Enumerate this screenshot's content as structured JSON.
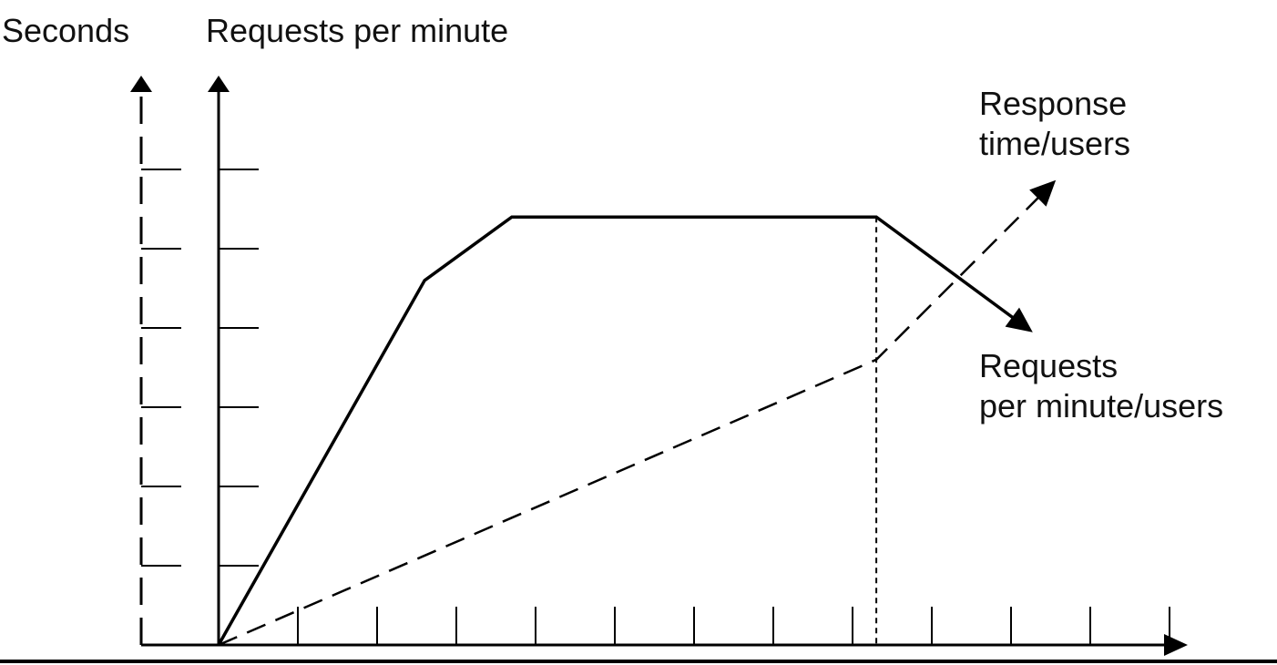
{
  "axes": {
    "seconds_label": "Seconds",
    "requests_label": "Requests per minute"
  },
  "series_labels": {
    "response_line1": "Response",
    "response_line2": "time/users",
    "requests_line1": "Requests",
    "requests_line2": "per minute/users"
  },
  "colors": {
    "ink": "#000000",
    "background": "#ffffff"
  },
  "chart_data": {
    "type": "line",
    "title": "",
    "xlabel": "",
    "ylabel_left": "Seconds",
    "ylabel_right": "Requests per minute",
    "x_ticks": 12,
    "y_ticks": 6,
    "xlim": [
      0,
      12
    ],
    "ylim": [
      0,
      6
    ],
    "series": [
      {
        "name": "Requests per minute/users",
        "style": "solid",
        "points": [
          [
            0,
            0
          ],
          [
            2.6,
            4.6
          ],
          [
            3.7,
            5.4
          ],
          [
            8.3,
            5.4
          ],
          [
            10.2,
            4.0
          ]
        ],
        "arrow_end": true
      },
      {
        "name": "Response time/users",
        "style": "dashed",
        "points": [
          [
            0,
            0
          ],
          [
            8.3,
            3.6
          ],
          [
            10.5,
            5.8
          ]
        ],
        "arrow_end": true
      }
    ],
    "reference_line": {
      "x": 8.3,
      "style": "dotted"
    },
    "grid": false,
    "legend": "inline labels at right"
  }
}
